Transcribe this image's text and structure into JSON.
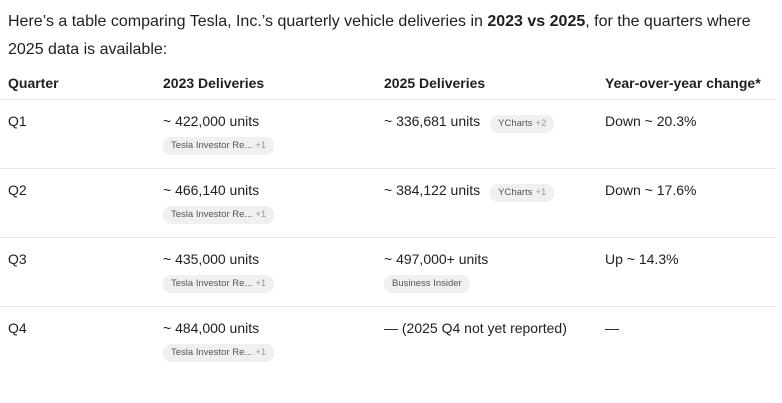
{
  "intro": {
    "before": "Here’s a table comparing Tesla, Inc.’s quarterly vehicle deliveries in ",
    "bold": "2023 vs 2025",
    "after": ", for the quarters where 2025 data is available:"
  },
  "table": {
    "headers": [
      "Quarter",
      "2023 Deliveries",
      "2025 Deliveries",
      "Year-over-year change*"
    ],
    "rows": [
      [
        {
          "text": "Q1"
        },
        {
          "text": "~ 422,000 units",
          "chip": {
            "label": "Tesla Investor Re...",
            "more": "+1"
          }
        },
        {
          "text": "~ 336,681 units",
          "chip": {
            "label": "YCharts",
            "more": "+2"
          },
          "inline": true
        },
        {
          "text": "Down ~ 20.3%"
        }
      ],
      [
        {
          "text": "Q2"
        },
        {
          "text": "~ 466,140 units",
          "chip": {
            "label": "Tesla Investor Re...",
            "more": "+1"
          }
        },
        {
          "text": "~ 384,122 units",
          "chip": {
            "label": "YCharts",
            "more": "+1"
          },
          "inline": true
        },
        {
          "text": "Down ~ 17.6%"
        }
      ],
      [
        {
          "text": "Q3"
        },
        {
          "text": "~ 435,000 units",
          "chip": {
            "label": "Tesla Investor Re...",
            "more": "+1"
          }
        },
        {
          "text": "~ 497,000+ units",
          "chip": {
            "label": "Business Insider"
          }
        },
        {
          "text": "Up ~ 14.3%"
        }
      ],
      [
        {
          "text": "Q4"
        },
        {
          "text": "~ 484,000 units",
          "chip": {
            "label": "Tesla Investor Re...",
            "more": "+1"
          }
        },
        {
          "text": "— (2025 Q4 not yet reported)"
        },
        {
          "text": "—"
        }
      ]
    ]
  }
}
